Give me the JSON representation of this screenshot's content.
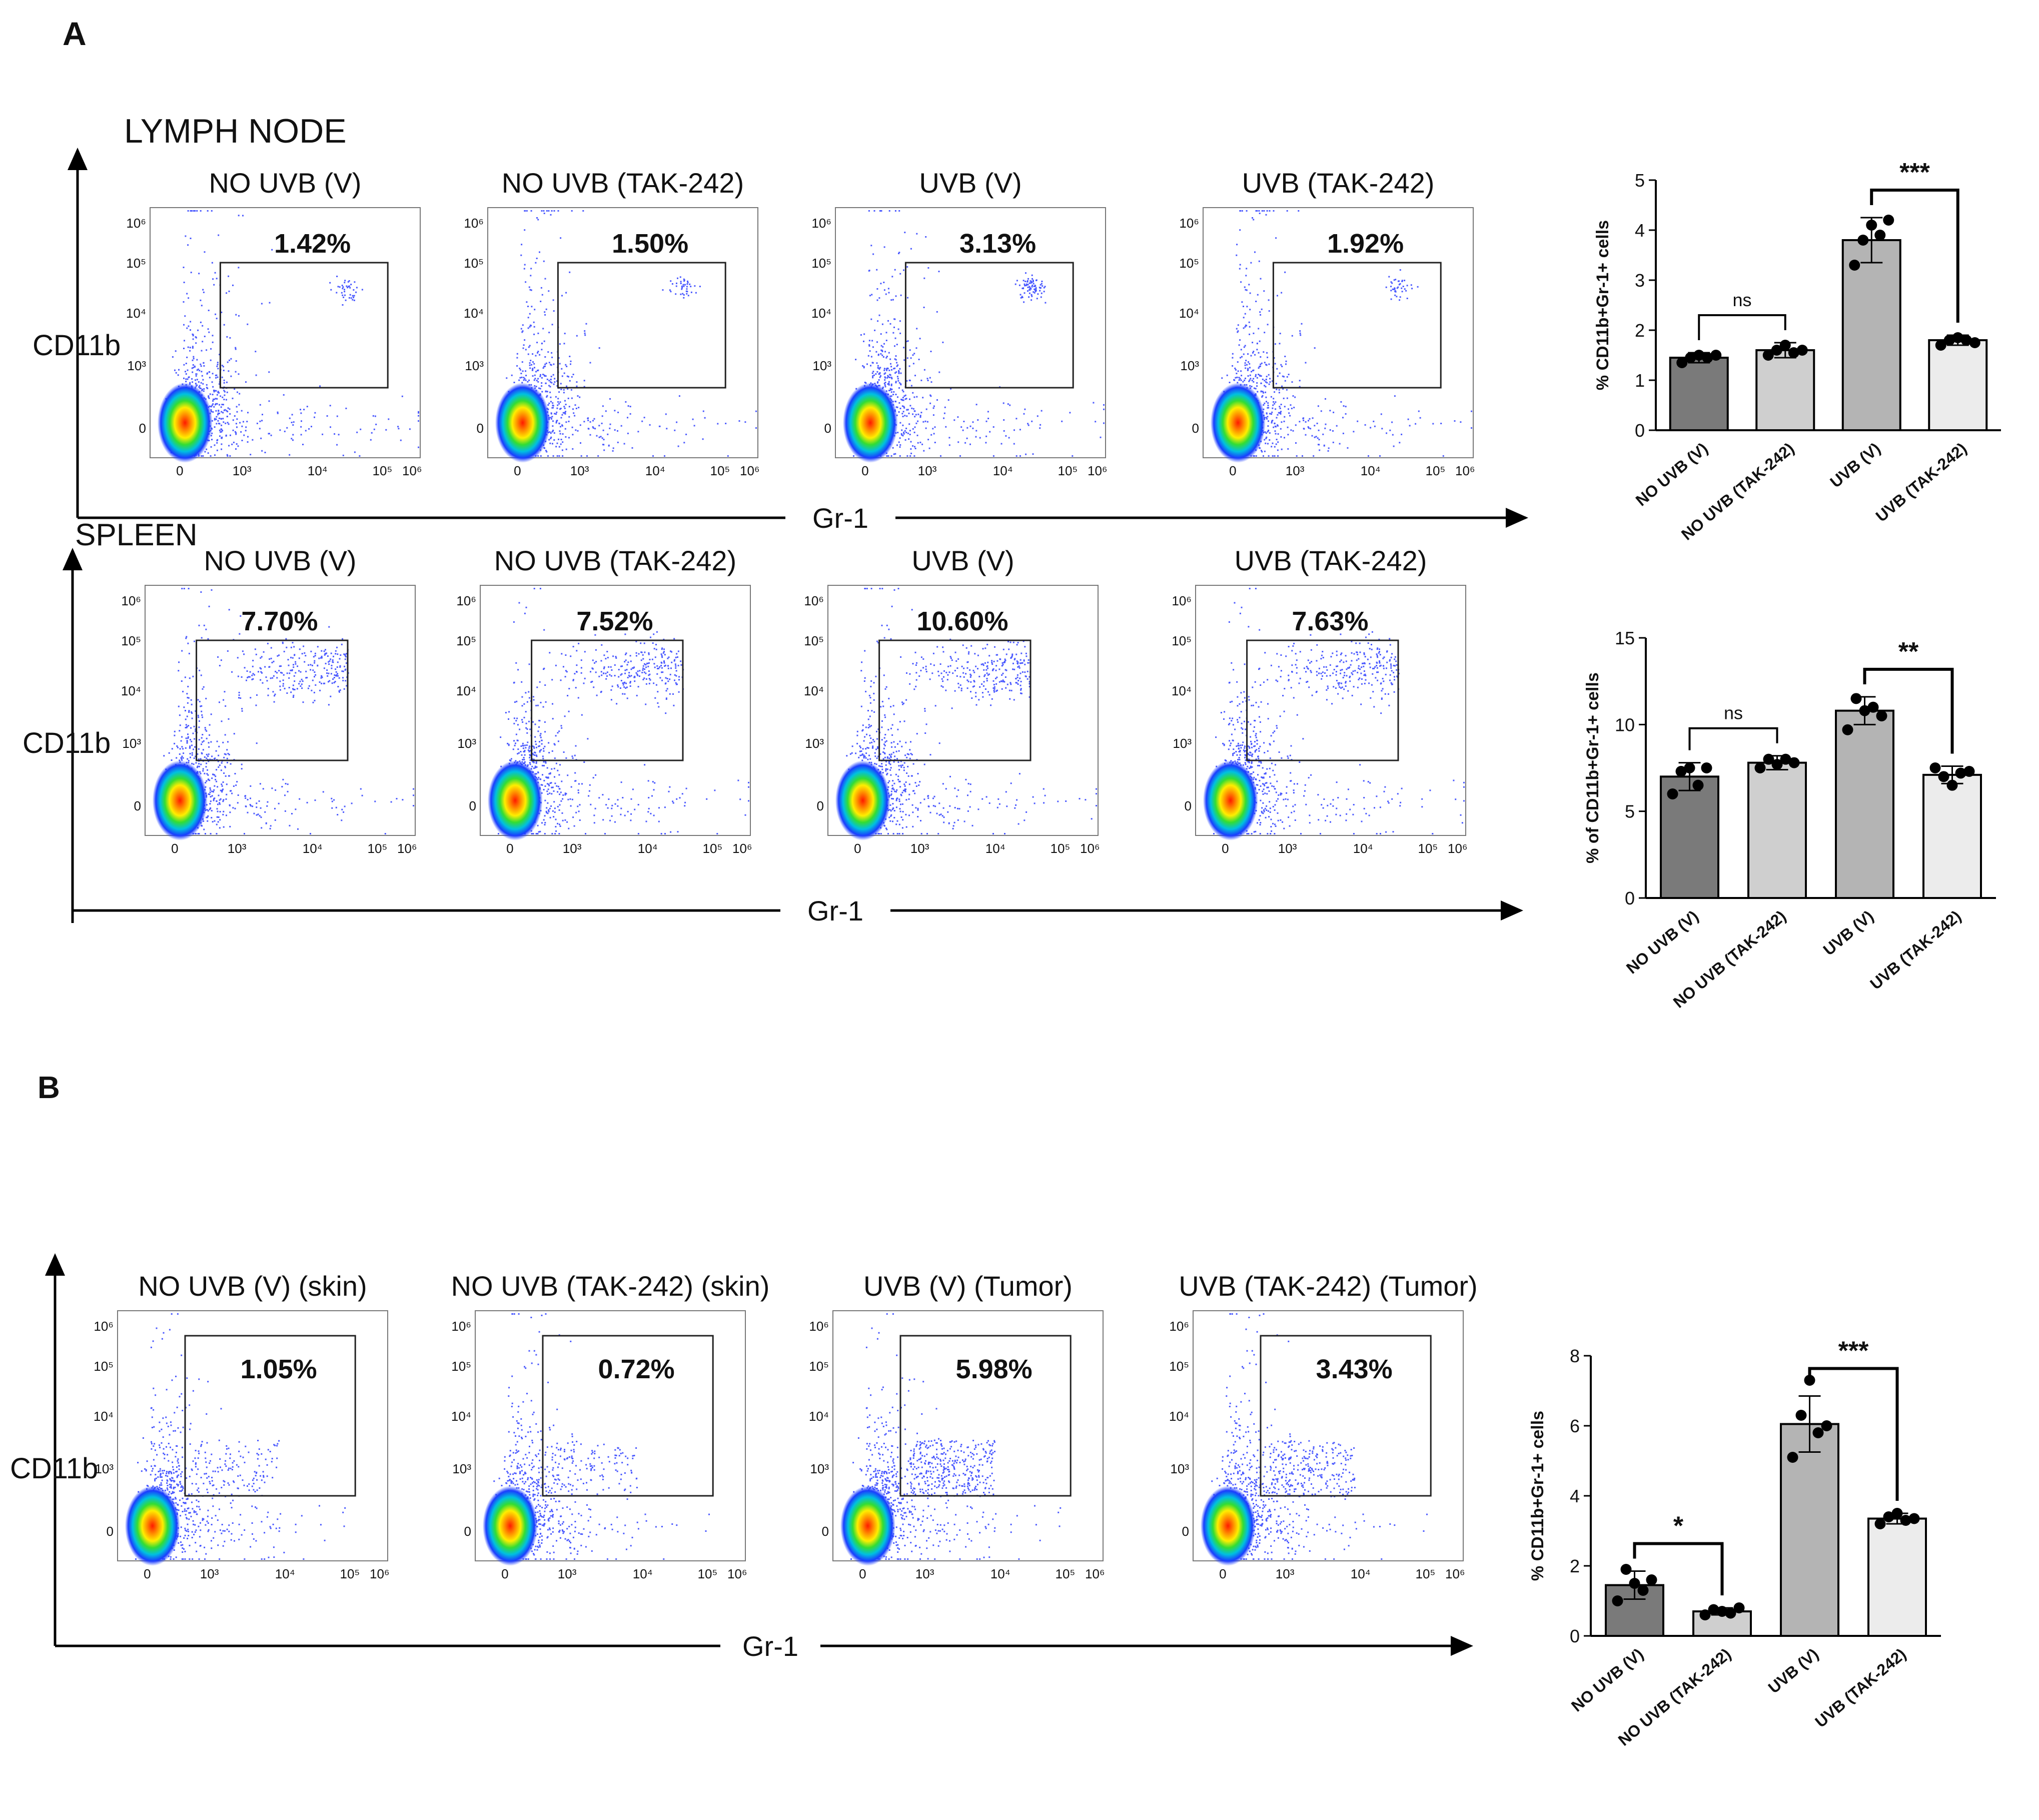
{
  "panel_a": {
    "letter": "A",
    "lymph_label": "LYMPH NODE",
    "spleen_label": "SPLEEN",
    "y_axis_label": "CD11b",
    "x_axis_label": "Gr-1",
    "lymph_titles": [
      "NO UVB (V)",
      "NO UVB (TAK-242)",
      "UVB (V)",
      "UVB (TAK-242)"
    ],
    "lymph_percents": [
      "1.42%",
      "1.50%",
      "3.13%",
      "1.92%"
    ],
    "spleen_titles": [
      "NO UVB (V)",
      "NO UVB (TAK-242)",
      "UVB (V)",
      "UVB (TAK-242)"
    ],
    "spleen_percents": [
      "7.70%",
      "7.52%",
      "10.60%",
      "7.63%"
    ]
  },
  "panel_b": {
    "letter": "B",
    "y_axis_label": "CD11b",
    "x_axis_label": "Gr-1",
    "titles": [
      "NO UVB (V) (skin)",
      "NO UVB (TAK-242) (skin)",
      "UVB (V) (Tumor)",
      "UVB (TAK-242) (Tumor)"
    ],
    "percents": [
      "1.05%",
      "0.72%",
      "5.98%",
      "3.43%"
    ]
  },
  "flow_ticks": {
    "y": [
      "10⁶",
      "10⁵",
      "10⁴",
      "10³",
      "0"
    ],
    "x": [
      "0",
      "10³",
      "10⁴",
      "10⁵",
      "10⁶"
    ]
  },
  "colors": {
    "bar_dark": "#7a7a7a",
    "bar_mid": "#cfcfcf",
    "bar_gray": "#b4b4b4",
    "bar_light": "#ececec",
    "dots": "#3a3aff"
  },
  "chart_data": [
    {
      "type": "bar",
      "title": "",
      "categories": [
        "NO UVB (V)",
        "NO UVB (TAK-242)",
        "UVB (V)",
        "UVB (TAK-242)"
      ],
      "values": [
        1.45,
        1.6,
        3.8,
        1.8
      ],
      "errors": [
        0.1,
        0.15,
        0.45,
        0.1
      ],
      "points": [
        [
          1.35,
          1.45,
          1.5,
          1.45,
          1.5
        ],
        [
          1.5,
          1.6,
          1.7,
          1.55,
          1.6
        ],
        [
          3.3,
          3.8,
          4.1,
          3.9,
          4.2
        ],
        [
          1.7,
          1.8,
          1.85,
          1.8,
          1.75
        ]
      ],
      "ylabel": "% CD11b+Gr-1+ cells",
      "xlabel": "",
      "ylim": [
        0,
        5
      ],
      "yticks": [
        "0",
        "1",
        "2",
        "3",
        "4",
        "5"
      ],
      "significance": [
        {
          "from": 0,
          "to": 1,
          "label": "ns"
        },
        {
          "from": 2,
          "to": 3,
          "label": "***"
        }
      ]
    },
    {
      "type": "bar",
      "title": "",
      "categories": [
        "NO UVB (V)",
        "NO UVB (TAK-242)",
        "UVB (V)",
        "UVB (TAK-242)"
      ],
      "values": [
        7.0,
        7.8,
        10.8,
        7.1
      ],
      "errors": [
        0.8,
        0.4,
        0.8,
        0.5
      ],
      "points": [
        [
          6.0,
          7.3,
          7.5,
          6.5,
          7.5
        ],
        [
          7.5,
          8.0,
          7.7,
          8.0,
          7.8
        ],
        [
          9.7,
          11.5,
          10.8,
          11.0,
          10.5
        ],
        [
          7.5,
          7.0,
          6.5,
          7.2,
          7.3
        ]
      ],
      "ylabel": "% of CD11b+Gr-1+ cells",
      "xlabel": "",
      "ylim": [
        0,
        15
      ],
      "yticks": [
        "0",
        "5",
        "10",
        "15"
      ],
      "significance": [
        {
          "from": 0,
          "to": 1,
          "label": "ns"
        },
        {
          "from": 2,
          "to": 3,
          "label": "**"
        }
      ]
    },
    {
      "type": "bar",
      "title": "",
      "categories": [
        "NO UVB (V)",
        "NO UVB (TAK-242)",
        "UVB (V)",
        "UVB (TAK-242)"
      ],
      "values": [
        1.45,
        0.7,
        6.05,
        3.35
      ],
      "errors": [
        0.4,
        0.1,
        0.8,
        0.15
      ],
      "points": [
        [
          1.0,
          1.9,
          1.5,
          1.3,
          1.6
        ],
        [
          0.6,
          0.75,
          0.7,
          0.65,
          0.8
        ],
        [
          5.1,
          6.3,
          7.3,
          5.8,
          6.0
        ],
        [
          3.2,
          3.4,
          3.5,
          3.3,
          3.35
        ]
      ],
      "ylabel": "% CD11b+Gr-1+ cells",
      "xlabel": "",
      "ylim": [
        0,
        8
      ],
      "yticks": [
        "0",
        "2",
        "4",
        "6",
        "8"
      ],
      "significance": [
        {
          "from": 0,
          "to": 1,
          "label": "*"
        },
        {
          "from": 2,
          "to": 3,
          "label": "***"
        }
      ]
    }
  ]
}
